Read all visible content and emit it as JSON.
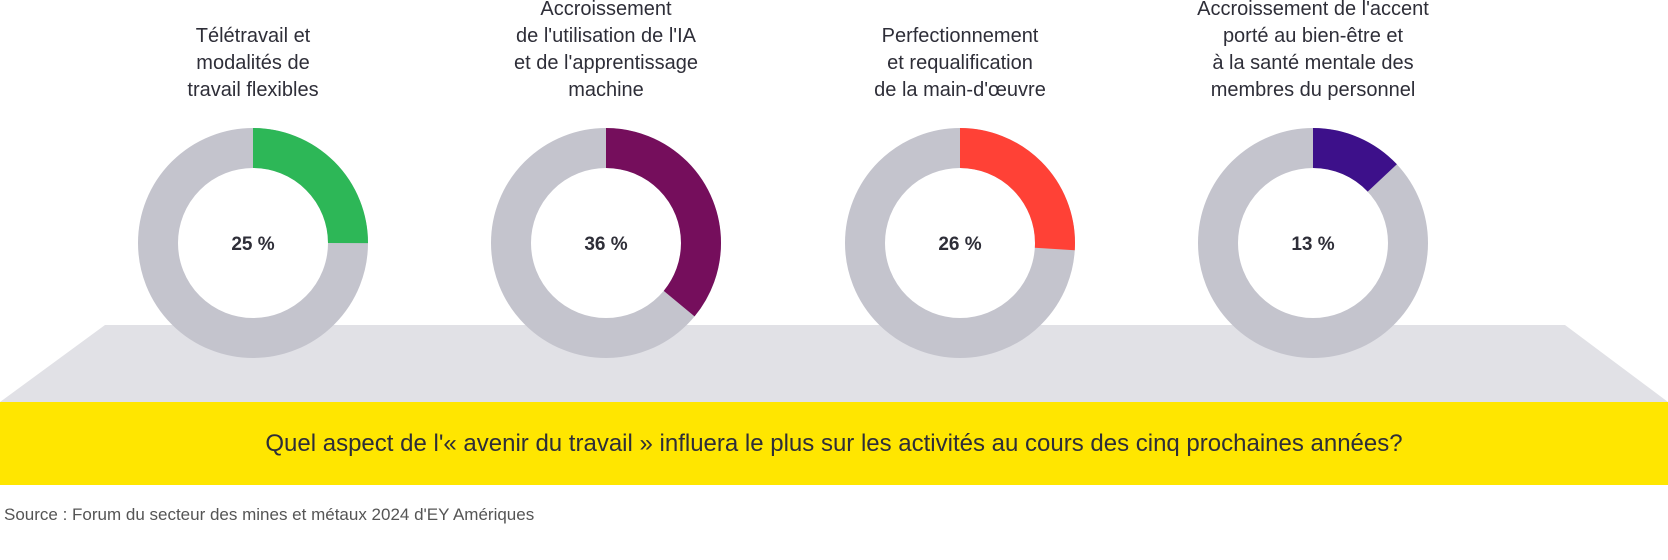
{
  "chart_data": {
    "type": "pie",
    "variant": "donut",
    "title": "Quel aspect de l'« avenir du travail » influera le plus sur les activités au cours des cinq prochaines années?",
    "source": "Source : Forum du secteur des mines et métaux 2024 d'EY Amériques",
    "charts": [
      {
        "label": "Télétravail et modalités de travail flexibles",
        "label_lines": [
          "Télétravail et",
          "modalités de",
          "travail flexibles"
        ],
        "value": 25,
        "value_label": "25 %",
        "color": "#2db757"
      },
      {
        "label": "Accroissement de l'utilisation de l'IA et de l'apprentissage machine",
        "label_lines": [
          "Accroissement",
          "de l'utilisation de l'IA",
          "et de l'apprentissage",
          "machine"
        ],
        "value": 36,
        "value_label": "36 %",
        "color": "#750e5c"
      },
      {
        "label": "Perfectionnement et requalification de la main-d'œuvre",
        "label_lines": [
          "Perfectionnement",
          "et requalification",
          "de la main-d'œuvre"
        ],
        "value": 26,
        "value_label": "26 %",
        "color": "#ff4136"
      },
      {
        "label": "Accroissement de l'accent porté au bien-être et à la santé mentale des membres du personnel",
        "label_lines": [
          "Accroissement de l'accent",
          "porté au bien-être et",
          "à la santé mentale des",
          "membres du personnel"
        ],
        "value": 13,
        "value_label": "13 %",
        "color": "#3d108a"
      }
    ],
    "remainder_color": "#c4c4cd",
    "max": 100
  }
}
